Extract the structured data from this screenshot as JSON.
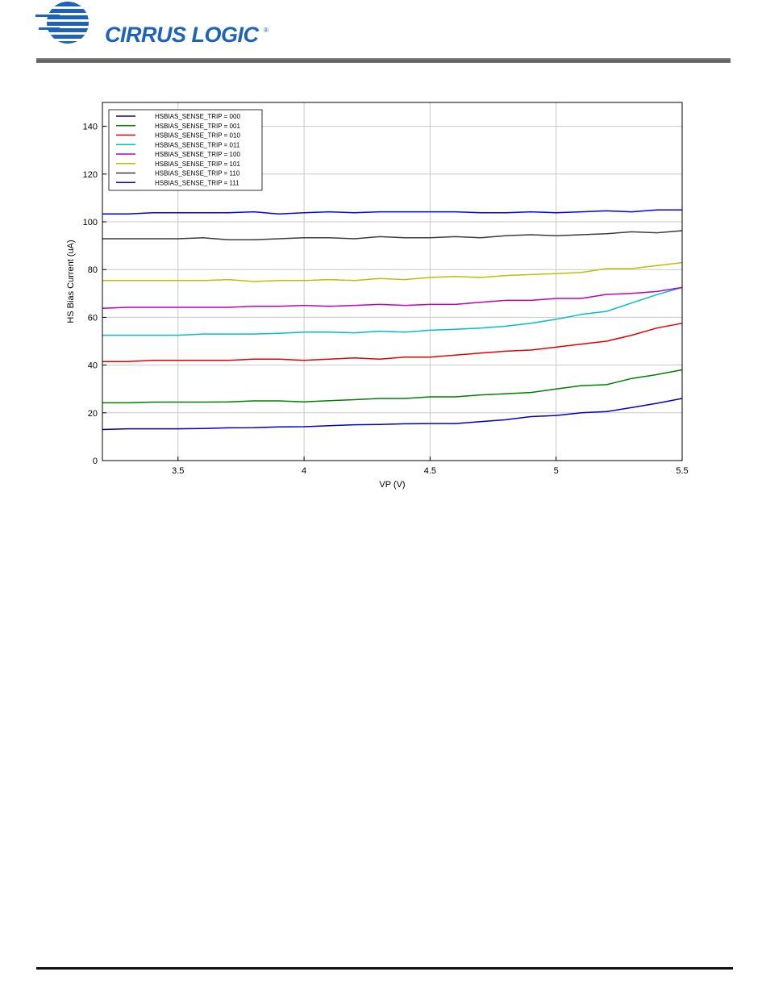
{
  "header": {
    "logo_text": "CIRRUS LOGIC",
    "logo_mark": "®"
  },
  "chart_data": {
    "type": "line",
    "title": "",
    "xlabel": "VP (V)",
    "ylabel": "HS Bias Current (uA)",
    "xlim": [
      3.2,
      5.5
    ],
    "ylim": [
      0,
      150
    ],
    "xticks": [
      3.5,
      4,
      4.5,
      5,
      5.5
    ],
    "xtick_labels": [
      "3.5",
      "4",
      "4.5",
      "5",
      "5.5"
    ],
    "yticks": [
      0,
      20,
      40,
      60,
      80,
      100,
      120,
      140
    ],
    "ytick_labels": [
      "0",
      "20",
      "40",
      "60",
      "80",
      "100",
      "120",
      "140"
    ],
    "grid": true,
    "legend_position": "top-left",
    "x": [
      3.2,
      3.3,
      3.4,
      3.5,
      3.6,
      3.7,
      3.8,
      3.9,
      4.0,
      4.1,
      4.2,
      4.3,
      4.4,
      4.5,
      4.6,
      4.7,
      4.8,
      4.9,
      5.0,
      5.1,
      5.2,
      5.3,
      5.4,
      5.5
    ],
    "series": [
      {
        "name": "HSBIAS_SENSE_TRIP = 000",
        "color": "#0000c8",
        "values": [
          13,
          13.3,
          13.3,
          13.3,
          13.4,
          13.7,
          13.8,
          14.1,
          14.2,
          14.6,
          15.0,
          15.1,
          15.4,
          15.5,
          15.5,
          16.3,
          17.1,
          18.4,
          18.9,
          20.0,
          20.5,
          22.2,
          24.0,
          26.0
        ]
      },
      {
        "name": "HSBIAS_SENSE_TRIP = 001",
        "color": "#008000",
        "values": [
          24.2,
          24.2,
          24.5,
          24.5,
          24.5,
          24.6,
          25.0,
          25.0,
          24.6,
          25.1,
          25.5,
          26.0,
          26.0,
          26.7,
          26.7,
          27.5,
          28.0,
          28.5,
          30.0,
          31.4,
          31.8,
          34.4,
          36.0,
          38.0
        ]
      },
      {
        "name": "HSBIAS_SENSE_TRIP = 010",
        "color": "#e60000",
        "values": [
          41.5,
          41.5,
          42.0,
          42.0,
          42.0,
          42.0,
          42.5,
          42.5,
          42.0,
          42.5,
          43.0,
          42.5,
          43.3,
          43.3,
          44.2,
          45.0,
          45.8,
          46.3,
          47.5,
          48.8,
          50.0,
          52.5,
          55.5,
          57.5
        ]
      },
      {
        "name": "HSBIAS_SENSE_TRIP = 011",
        "color": "#00bfbf",
        "values": [
          52.5,
          52.5,
          52.5,
          52.5,
          53.0,
          53.0,
          53.0,
          53.3,
          53.8,
          53.8,
          53.5,
          54.2,
          53.8,
          54.6,
          55.0,
          55.5,
          56.3,
          57.5,
          59.2,
          61.2,
          62.5,
          66.0,
          69.5,
          72.5
        ]
      },
      {
        "name": "HSBIAS_SENSE_TRIP = 100",
        "color": "#bf00bf",
        "values": [
          63.8,
          64.2,
          64.2,
          64.2,
          64.2,
          64.2,
          64.6,
          64.6,
          65.0,
          64.6,
          65.0,
          65.4,
          65.0,
          65.4,
          65.4,
          66.3,
          67.1,
          67.1,
          67.9,
          67.9,
          69.6,
          70.0,
          70.8,
          72.5
        ]
      },
      {
        "name": "HSBIAS_SENSE_TRIP = 101",
        "color": "#bfbf00",
        "values": [
          75.4,
          75.4,
          75.4,
          75.4,
          75.4,
          75.8,
          75.0,
          75.4,
          75.4,
          75.8,
          75.4,
          76.3,
          75.8,
          76.7,
          77.1,
          76.7,
          77.5,
          77.9,
          78.3,
          78.8,
          80.4,
          80.4,
          81.7,
          82.9
        ]
      },
      {
        "name": "HSBIAS_SENSE_TRIP = 110",
        "color": "#3c3c3c",
        "values": [
          92.9,
          92.9,
          92.9,
          92.9,
          93.3,
          92.5,
          92.5,
          92.9,
          93.3,
          93.3,
          92.9,
          93.8,
          93.3,
          93.3,
          93.8,
          93.3,
          94.2,
          94.6,
          94.2,
          94.6,
          95.0,
          95.8,
          95.4,
          96.3
        ]
      },
      {
        "name": "HSBIAS_SENSE_TRIP = 111",
        "color": "#0000ff",
        "values": [
          103.3,
          103.3,
          103.8,
          103.8,
          103.8,
          103.8,
          104.2,
          103.3,
          103.8,
          104.2,
          103.8,
          104.2,
          104.2,
          104.2,
          104.2,
          103.8,
          103.8,
          104.2,
          103.8,
          104.2,
          104.6,
          104.2,
          105.0,
          105.0
        ]
      }
    ]
  }
}
